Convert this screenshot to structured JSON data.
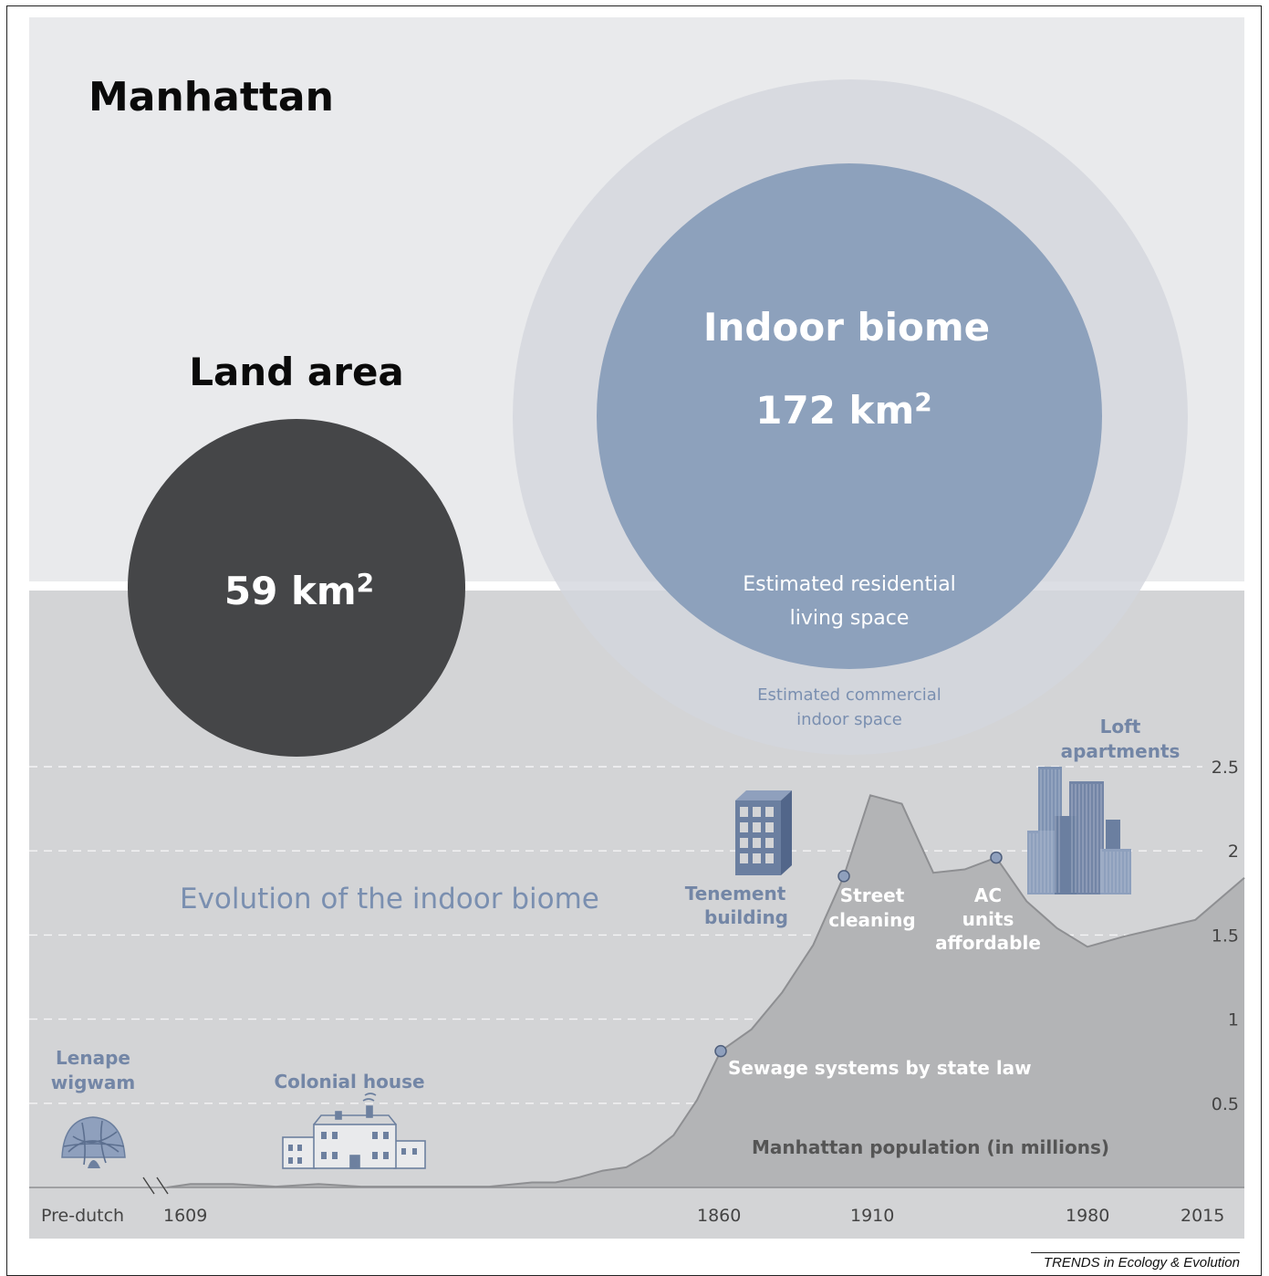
{
  "panel": {
    "title": "Manhattan"
  },
  "land": {
    "title": "Land area",
    "value": "59 km",
    "exp": "2"
  },
  "indoor": {
    "title": "Indoor biome",
    "value": "172 km",
    "exp": "2",
    "residential_line1": "Estimated residential",
    "residential_line2": "living space",
    "commercial_line1": "Estimated commercial",
    "commercial_line2": "indoor space"
  },
  "colors": {
    "top_bg": "#e9eaec",
    "bottom_bg": "#d3d4d6",
    "land_circle": "#454648",
    "outer_circle": "#d3d6dd",
    "inner_circle": "#8da1bc",
    "accent_blue": "#6f85a5",
    "area_fill": "#b3b4b6"
  },
  "evolution": {
    "title": "Evolution of the indoor biome"
  },
  "icons": [
    {
      "name": "wigwam-icon",
      "label_line1": "Lenape",
      "label_line2": "wigwam"
    },
    {
      "name": "colonial-house-icon",
      "label_line1": "Colonial house",
      "label_line2": ""
    },
    {
      "name": "tenement-building-icon",
      "label_line1": "Tenement",
      "label_line2": "building"
    },
    {
      "name": "loft-apartments-icon",
      "label_line1": "Loft",
      "label_line2": "apartments"
    }
  ],
  "chart_data": {
    "type": "area",
    "ylabel": "Manhattan population (in millions)",
    "ylim": [
      0,
      2.75
    ],
    "yticks": [
      0.5,
      1,
      1.5,
      2,
      2.5
    ],
    "ytick_labels": [
      "0.5",
      "1",
      "1.5",
      "2",
      "2.5"
    ],
    "grid": true,
    "x_axis_labels": [
      "Pre-dutch",
      "1609",
      "1860",
      "1910",
      "1980",
      "2015"
    ],
    "x_axis_break": true,
    "series": [
      {
        "x": [
          1609,
          1620,
          1640,
          1660,
          1680,
          1700,
          1720,
          1740,
          1760,
          1780,
          1790,
          1800,
          1810,
          1820,
          1830,
          1840,
          1850,
          1860,
          1870,
          1880,
          1890,
          1900,
          1910,
          1920,
          1930,
          1940,
          1950,
          1960,
          1970,
          1980,
          1990,
          2000,
          2010,
          2020
        ],
        "y": [
          0,
          0.02,
          0.02,
          0.005,
          0.02,
          0.005,
          0.005,
          0.005,
          0.005,
          0.03,
          0.03,
          0.06,
          0.1,
          0.12,
          0.2,
          0.31,
          0.52,
          0.81,
          0.94,
          1.16,
          1.44,
          1.85,
          2.33,
          2.28,
          1.87,
          1.89,
          1.96,
          1.7,
          1.54,
          1.43,
          1.49,
          1.54,
          1.59,
          1.84
        ]
      }
    ],
    "annotations": [
      {
        "x": 1860,
        "y": 0.81,
        "label_line1": "Sewage systems by state law",
        "label_line2": "",
        "label_line3": ""
      },
      {
        "x": 1900,
        "y": 1.85,
        "label_line1": "Street",
        "label_line2": "cleaning",
        "label_line3": ""
      },
      {
        "x": 1950,
        "y": 1.96,
        "label_line1": "AC",
        "label_line2": "units",
        "label_line3": "affordable"
      }
    ]
  },
  "source": {
    "journal": "TRENDS in Ecology & Evolution"
  }
}
